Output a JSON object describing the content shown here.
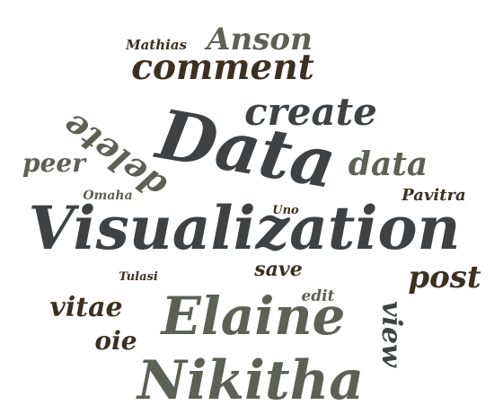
{
  "word_cloud": {
    "palette": {
      "dark": "#3e4244",
      "gray": "#5c6155",
      "brown": "#3c3020",
      "olive": "#5a5d4c"
    },
    "words": [
      {
        "id": "visualization",
        "text": "Visualization",
        "color": "#3e4244"
      },
      {
        "id": "data-big",
        "text": "Data",
        "color": "#3e4244"
      },
      {
        "id": "elaine",
        "text": "Elaine",
        "color": "#5c6155"
      },
      {
        "id": "nikitha",
        "text": "Nikitha",
        "color": "#5c6155"
      },
      {
        "id": "comment",
        "text": "comment",
        "color": "#3c3020"
      },
      {
        "id": "create",
        "text": "create",
        "color": "#3e4244"
      },
      {
        "id": "anson",
        "text": "Anson",
        "color": "#5c6155"
      },
      {
        "id": "data-small",
        "text": "data",
        "color": "#5c6155"
      },
      {
        "id": "delete",
        "text": "delete",
        "color": "#5c6155"
      },
      {
        "id": "peer",
        "text": "peer",
        "color": "#5c6155"
      },
      {
        "id": "vitae",
        "text": "vitae",
        "color": "#3c3020"
      },
      {
        "id": "oie",
        "text": "oie",
        "color": "#3c3020"
      },
      {
        "id": "post",
        "text": "post",
        "color": "#3c3020"
      },
      {
        "id": "view",
        "text": "view",
        "color": "#3e4244"
      },
      {
        "id": "save",
        "text": "save",
        "color": "#3c3020"
      },
      {
        "id": "edit",
        "text": "edit",
        "color": "#5c6155"
      },
      {
        "id": "pavitra",
        "text": "Pavitra",
        "color": "#3c3020"
      },
      {
        "id": "mathias",
        "text": "Mathias",
        "color": "#3c3020"
      },
      {
        "id": "omaha",
        "text": "Omaha",
        "color": "#5c6155"
      },
      {
        "id": "uno",
        "text": "Uno",
        "color": "#3c3020"
      },
      {
        "id": "tulasi",
        "text": "Tulasi",
        "color": "#3c3020"
      }
    ]
  }
}
